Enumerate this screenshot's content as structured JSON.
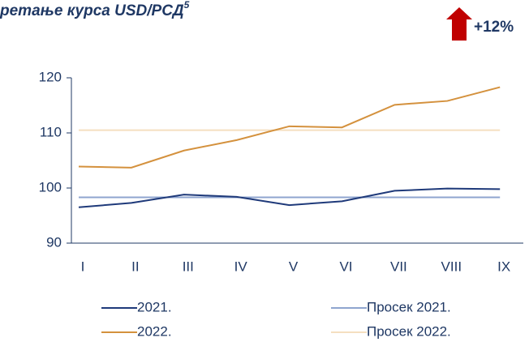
{
  "chart_data": {
    "type": "line",
    "title": "ретање курса USD/РСД",
    "title_note": "5",
    "annotation": "+12%",
    "categories": [
      "I",
      "II",
      "III",
      "IV",
      "V",
      "VI",
      "VII",
      "VIII",
      "IX"
    ],
    "series": [
      {
        "name": "2021.",
        "color": "#1f3a7a",
        "values": [
          96.5,
          97.3,
          98.8,
          98.4,
          96.9,
          97.6,
          99.5,
          99.9,
          99.8
        ]
      },
      {
        "name": "Просек 2021.",
        "color": "#8fa5cf",
        "values": [
          98.3,
          98.3,
          98.3,
          98.3,
          98.3,
          98.3,
          98.3,
          98.3,
          98.3
        ]
      },
      {
        "name": "2022.",
        "color": "#d4913d",
        "values": [
          103.9,
          103.7,
          106.8,
          108.7,
          111.2,
          111.0,
          115.1,
          115.8,
          118.3
        ]
      },
      {
        "name": "Просек 2022.",
        "color": "#f5dfc0",
        "values": [
          110.5,
          110.5,
          110.5,
          110.5,
          110.5,
          110.5,
          110.5,
          110.5,
          110.5
        ]
      }
    ],
    "ylim": [
      90,
      120
    ],
    "yticks": [
      90,
      100,
      110,
      120
    ],
    "grid": false
  }
}
